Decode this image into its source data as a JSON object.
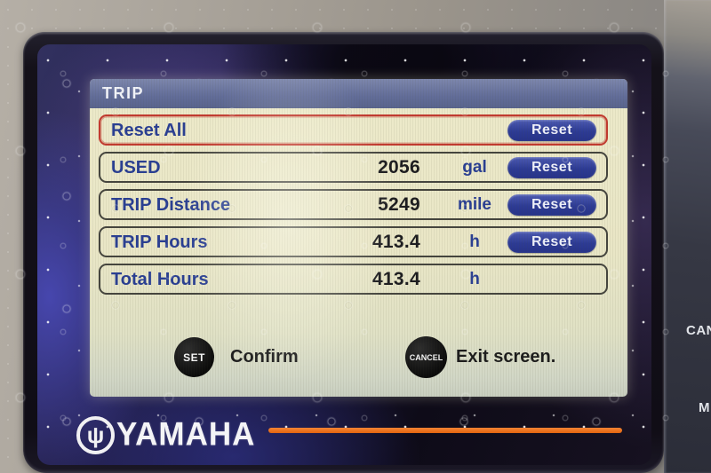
{
  "screen": {
    "title": "TRIP",
    "rows": [
      {
        "label": "Reset All",
        "value": "",
        "unit": "",
        "selected": true,
        "has_reset": true
      },
      {
        "label": "USED",
        "value": "2056",
        "unit": "gal",
        "selected": false,
        "has_reset": true
      },
      {
        "label": "TRIP Distance",
        "value": "5249",
        "unit": "mile",
        "selected": false,
        "has_reset": true
      },
      {
        "label": "TRIP Hours",
        "value": "413.4",
        "unit": "h",
        "selected": false,
        "has_reset": true
      },
      {
        "label": "Total Hours",
        "value": "413.4",
        "unit": "h",
        "selected": false,
        "has_reset": false
      }
    ],
    "reset_label": "Reset",
    "hints": [
      {
        "button": "SET",
        "text": "Confirm"
      },
      {
        "button": "CANCEL",
        "text": "Exit screen."
      }
    ]
  },
  "device": {
    "brand": "YAMAHA",
    "emblem_glyph": "ψ",
    "bezel_labels": [
      "CAN",
      "M"
    ]
  },
  "colors": {
    "header_bar_blue": "#626d99",
    "label_navy": "#2a3f93",
    "value_black": "#1d1d20",
    "reset_button_blue": "#2d3b94",
    "selected_border_red": "#c33a2f",
    "lcd_background_cream": "#e9e6c6",
    "accent_orange": "#e2660f",
    "glass_blue": "#272453"
  }
}
